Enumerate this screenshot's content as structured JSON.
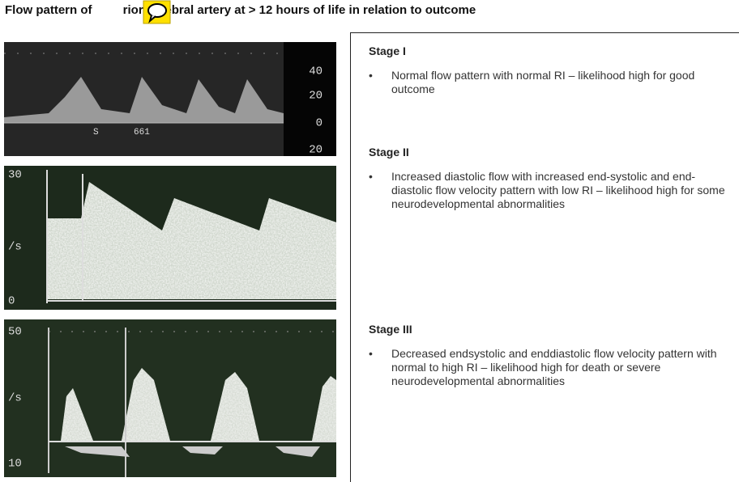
{
  "header": {
    "title_before": "Flow pattern of",
    "title_after": "rior cerebral artery at > 12 hours of life in relation to outcome"
  },
  "images": [
    {
      "labels": [
        "40",
        "20",
        "0",
        "20",
        "S",
        "661"
      ]
    },
    {
      "labels": [
        "30",
        "/s",
        "0"
      ]
    },
    {
      "labels": [
        "50",
        "/s",
        "10"
      ]
    }
  ],
  "stages": [
    {
      "heading": "Stage I",
      "bullet": "Normal flow pattern with normal RI – likelihood high for good outcome"
    },
    {
      "heading": "Stage II",
      "bullet": "Increased diastolic flow with increased end-systolic and end-diastolic flow velocity pattern with low RI – likelihood high for some neurodevelopmental abnormalities"
    },
    {
      "heading": "Stage III",
      "bullet": "Decreased endsystolic and enddiastolic flow velocity pattern with normal to high RI – likelihood high for death or severe neurodevelopmental abnormalities"
    }
  ]
}
